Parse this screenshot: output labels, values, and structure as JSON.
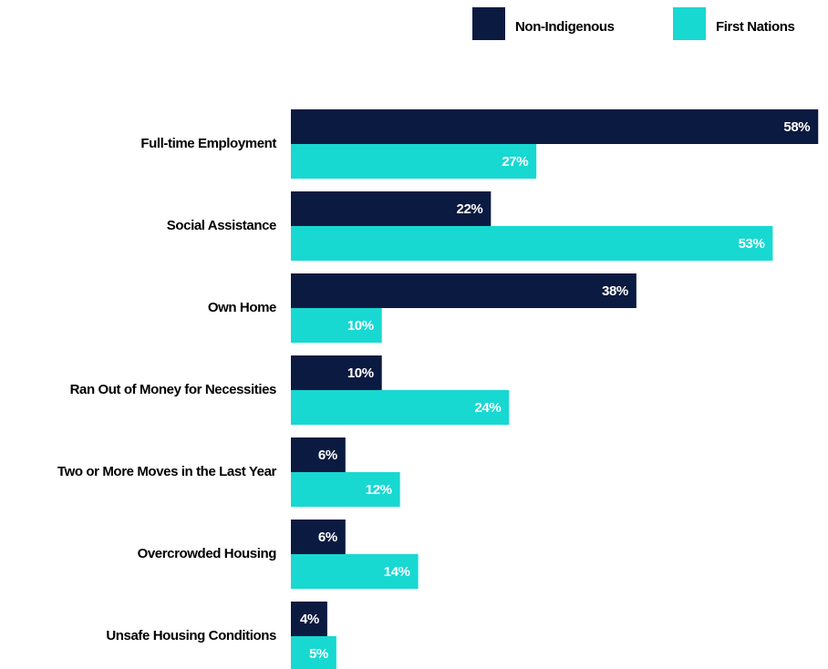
{
  "chart_data": {
    "type": "bar",
    "orientation": "horizontal",
    "categories": [
      "Full-time Employment",
      "Social Assistance",
      "Own Home",
      "Ran Out of Money for Necessities",
      "Two or More Moves in the Last Year",
      "Overcrowded Housing",
      "Unsafe Housing Conditions"
    ],
    "series": [
      {
        "name": "Non-Indigenous",
        "color": "#0b1a40",
        "values": [
          58,
          22,
          38,
          10,
          6,
          6,
          4
        ],
        "value_labels": [
          "58%",
          "22%",
          "38%",
          "10%",
          "6%",
          "6%",
          "4%"
        ]
      },
      {
        "name": "First Nations",
        "color": "#18d8d2",
        "values": [
          27,
          53,
          10,
          24,
          12,
          14,
          5
        ],
        "value_labels": [
          "27%",
          "53%",
          "10%",
          "24%",
          "12%",
          "14%",
          "5%"
        ]
      }
    ],
    "legend": "top-right"
  }
}
